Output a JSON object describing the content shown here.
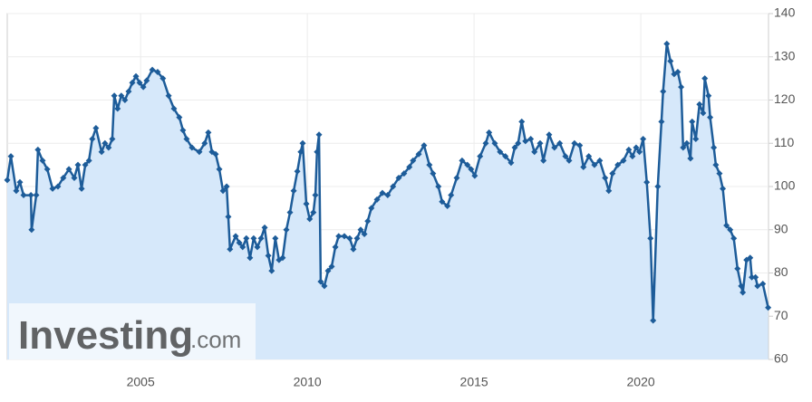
{
  "chart_data": {
    "type": "line",
    "watermark": {
      "main": "Investing",
      "suffix": ".com"
    },
    "x": [
      2001.0,
      2001.11,
      2001.27,
      2001.38,
      2001.49,
      2001.71,
      2001.73,
      2001.87,
      2001.92,
      2002.06,
      2002.2,
      2002.36,
      2002.52,
      2002.68,
      2002.85,
      2003.01,
      2003.12,
      2003.23,
      2003.34,
      2003.45,
      2003.55,
      2003.66,
      2003.83,
      2003.93,
      2004.04,
      2004.15,
      2004.21,
      2004.31,
      2004.42,
      2004.53,
      2004.64,
      2004.75,
      2004.86,
      2004.97,
      2005.08,
      2005.18,
      2005.35,
      2005.51,
      2005.67,
      2005.84,
      2006.0,
      2006.16,
      2006.27,
      2006.38,
      2006.54,
      2006.76,
      2006.92,
      2007.03,
      2007.14,
      2007.25,
      2007.36,
      2007.47,
      2007.58,
      2007.63,
      2007.68,
      2007.85,
      2007.96,
      2008.06,
      2008.17,
      2008.28,
      2008.39,
      2008.5,
      2008.61,
      2008.72,
      2008.83,
      2008.93,
      2009.04,
      2009.15,
      2009.26,
      2009.37,
      2009.48,
      2009.59,
      2009.7,
      2009.8,
      2009.86,
      2009.97,
      2010.07,
      2010.18,
      2010.24,
      2010.29,
      2010.35,
      2010.4,
      2010.51,
      2010.62,
      2010.73,
      2010.84,
      2010.94,
      2011.11,
      2011.27,
      2011.38,
      2011.49,
      2011.6,
      2011.71,
      2011.81,
      2011.92,
      2012.09,
      2012.25,
      2012.41,
      2012.57,
      2012.74,
      2012.9,
      2013.06,
      2013.17,
      2013.34,
      2013.5,
      2013.66,
      2013.77,
      2013.93,
      2014.04,
      2014.2,
      2014.31,
      2014.48,
      2014.64,
      2014.8,
      2014.91,
      2015.02,
      2015.18,
      2015.35,
      2015.45,
      2015.62,
      2015.78,
      2015.94,
      2016.11,
      2016.22,
      2016.32,
      2016.43,
      2016.54,
      2016.7,
      2016.81,
      2016.98,
      2017.08,
      2017.25,
      2017.41,
      2017.57,
      2017.74,
      2017.85,
      2018.01,
      2018.17,
      2018.28,
      2018.44,
      2018.61,
      2018.77,
      2018.93,
      2019.04,
      2019.15,
      2019.31,
      2019.48,
      2019.64,
      2019.75,
      2019.86,
      2019.96,
      2020.07,
      2020.18,
      2020.29,
      2020.37,
      2020.51,
      2020.62,
      2020.67,
      2020.78,
      2020.89,
      2021.0,
      2021.11,
      2021.21,
      2021.27,
      2021.38,
      2021.49,
      2021.54,
      2021.65,
      2021.76,
      2021.87,
      2021.92,
      2022.03,
      2022.08,
      2022.19,
      2022.25,
      2022.36,
      2022.46,
      2022.57,
      2022.68,
      2022.79,
      2022.9,
      2023.01,
      2023.06,
      2023.17,
      2023.28,
      2023.33,
      2023.44,
      2023.5,
      2023.66,
      2023.82
    ],
    "values": [
      101.5,
      107,
      99,
      101,
      98,
      98,
      90,
      98,
      108.5,
      106,
      104,
      99.5,
      100,
      102,
      104,
      102,
      105,
      99.5,
      105,
      106,
      111,
      113.5,
      108,
      110,
      109,
      111,
      121,
      118,
      121,
      120,
      122,
      124,
      125.5,
      124,
      123,
      124.5,
      127,
      126.5,
      125,
      121,
      118,
      116,
      113,
      111,
      109,
      108,
      110,
      112.5,
      108,
      107.5,
      104,
      99,
      100,
      93,
      85.5,
      88.5,
      87,
      86,
      88,
      83.5,
      88,
      86,
      88,
      90.5,
      84,
      80.5,
      88,
      83,
      83.5,
      90,
      94,
      99,
      103.5,
      108,
      110,
      96,
      92.5,
      94,
      98,
      108,
      112,
      78,
      77,
      80.5,
      81.5,
      86,
      88.5,
      88.5,
      88,
      85.5,
      88,
      90,
      89,
      92,
      95,
      97,
      98.5,
      98,
      100,
      102,
      103,
      104.5,
      106,
      107.5,
      109.5,
      105,
      103,
      100,
      96.5,
      95.5,
      98,
      102,
      106,
      105,
      104,
      102.5,
      107,
      110,
      112.5,
      110,
      108,
      107,
      105.5,
      109,
      110,
      115,
      110.5,
      111,
      108,
      110,
      106,
      112,
      109,
      110,
      107,
      106,
      110,
      109.5,
      104.5,
      107,
      105,
      106,
      102,
      99,
      103,
      105,
      106,
      108.5,
      107,
      109,
      108,
      111,
      101,
      88,
      69,
      100,
      115,
      122,
      133,
      129,
      126,
      126.5,
      123,
      109,
      110,
      106.5,
      115,
      111,
      119,
      117,
      125,
      121,
      116,
      109,
      105,
      103,
      99.5,
      91,
      90,
      88,
      81,
      77,
      75.5,
      83,
      83.5,
      79,
      79,
      77,
      77.5,
      72
    ],
    "color": "#1d5c99",
    "fill": "#d6e8fa",
    "xlim": [
      2001,
      2023.83
    ],
    "xticks": [
      2005,
      2010,
      2015,
      2020
    ],
    "ylim": [
      60,
      140
    ],
    "yticks": [
      60,
      70,
      80,
      90,
      100,
      110,
      120,
      130,
      140
    ],
    "grid": true,
    "yaxis_side": "right"
  }
}
